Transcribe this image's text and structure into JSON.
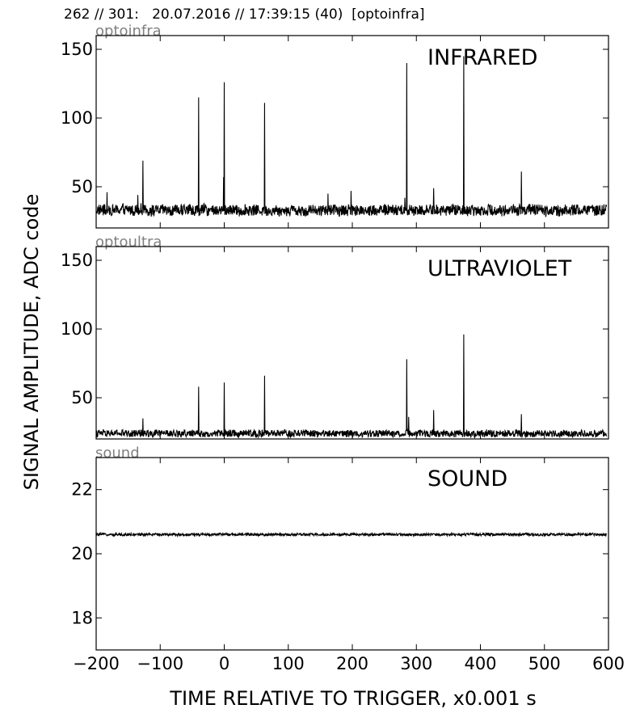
{
  "header": {
    "text": "262 // 301:   20.07.2016 // 17:39:15 (40)  [optoinfra]"
  },
  "chart_data": {
    "type": "line",
    "xlabel": "TIME RELATIVE TO TRIGGER,   x0.001 s",
    "ylabel": "SIGNAL AMPLITUDE,  ADC code",
    "xlim": [
      -200,
      600
    ],
    "x_range_data": [
      -200,
      597
    ],
    "x_ticks": [
      "−200",
      "−100",
      "0",
      "100",
      "200",
      "300",
      "400",
      "500",
      "600"
    ],
    "x_tick_values": [
      -200,
      -100,
      0,
      100,
      200,
      300,
      400,
      500,
      600
    ],
    "panels": [
      {
        "channel": "optoinfra",
        "title": "INFRARED",
        "ylim": [
          20,
          160
        ],
        "y_ticks": [
          "50",
          "100",
          "150"
        ],
        "y_tick_values": [
          50,
          100,
          150
        ],
        "baseline": 33,
        "noise_amplitude": 4,
        "spikes": [
          {
            "x": -183,
            "y": 46
          },
          {
            "x": -135,
            "y": 44
          },
          {
            "x": -127,
            "y": 69
          },
          {
            "x": -40,
            "y": 115
          },
          {
            "x": -1,
            "y": 57
          },
          {
            "x": 0,
            "y": 126
          },
          {
            "x": 63,
            "y": 111
          },
          {
            "x": 162,
            "y": 45
          },
          {
            "x": 198,
            "y": 47
          },
          {
            "x": 282,
            "y": 42
          },
          {
            "x": 285,
            "y": 140
          },
          {
            "x": 327,
            "y": 49
          },
          {
            "x": 374,
            "y": 145
          },
          {
            "x": 464,
            "y": 61
          }
        ]
      },
      {
        "channel": "optoultra",
        "title": "ULTRAVIOLET",
        "ylim": [
          20,
          160
        ],
        "y_ticks": [
          "50",
          "100",
          "150"
        ],
        "y_tick_values": [
          50,
          100,
          150
        ],
        "baseline": 24,
        "noise_amplitude": 2.5,
        "spikes": [
          {
            "x": -127,
            "y": 35
          },
          {
            "x": -40,
            "y": 58
          },
          {
            "x": 0,
            "y": 61
          },
          {
            "x": 63,
            "y": 66
          },
          {
            "x": 285,
            "y": 78
          },
          {
            "x": 288,
            "y": 36
          },
          {
            "x": 327,
            "y": 41
          },
          {
            "x": 374,
            "y": 96
          },
          {
            "x": 464,
            "y": 38
          }
        ]
      },
      {
        "channel": "sound",
        "title": "SOUND",
        "ylim": [
          17,
          23
        ],
        "y_ticks": [
          "18",
          "20",
          "22"
        ],
        "y_tick_values": [
          18,
          20,
          22
        ],
        "baseline": 20.6,
        "noise_amplitude": 0.04,
        "spikes": []
      }
    ]
  }
}
